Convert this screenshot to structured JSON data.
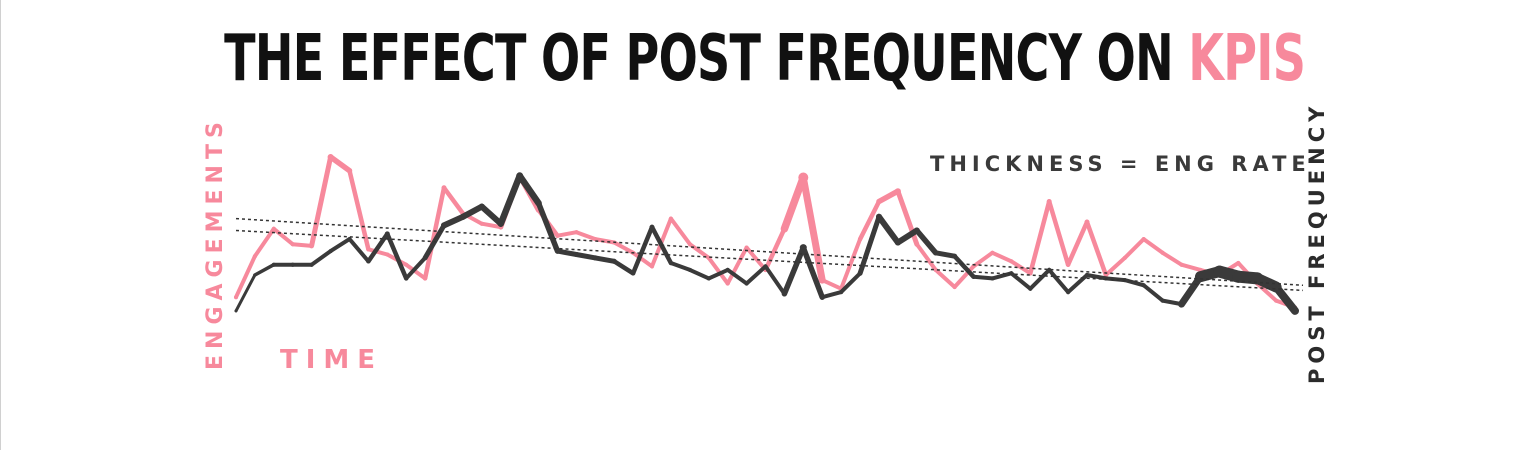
{
  "title": {
    "main": "THE EFFECT OF POST FREQUENCY ON ",
    "accent": "KPIS"
  },
  "colors": {
    "accent": "#f7899c",
    "dark": "#3a3a3a",
    "text": "#111111",
    "trend": "#333333"
  },
  "chart_data": {
    "type": "line",
    "title": "THE EFFECT OF POST FREQUENCY ON KPIS",
    "xlabel": "TIME",
    "annotation": "THICKNESS = ENG RATE",
    "axis_labels": {
      "left": "ENGAGEMENTS",
      "right": "POST FREQUENCY"
    },
    "grid": false,
    "ylim": [
      0,
      100
    ],
    "series": [
      {
        "name": "ENGAGEMENTS",
        "color": "#f7899c",
        "values": [
          18,
          42,
          58,
          49,
          48,
          100,
          92,
          46,
          43,
          37,
          29,
          82,
          67,
          61,
          59,
          89,
          69,
          54,
          56,
          52,
          50,
          44,
          36,
          64,
          49,
          41,
          26,
          47,
          34,
          58,
          88,
          28,
          23,
          52,
          74,
          80,
          49,
          34,
          24,
          36,
          44,
          39,
          32,
          74,
          37,
          62,
          31,
          41,
          52,
          44,
          37,
          34,
          31,
          38,
          26,
          16,
          12
        ],
        "thickness": [
          4,
          4,
          4,
          4,
          4,
          6,
          5,
          4,
          4,
          4,
          4,
          5,
          4,
          4,
          4,
          6,
          5,
          4,
          4,
          4,
          4,
          4,
          4,
          4,
          4,
          4,
          4,
          4,
          4,
          5,
          10,
          4,
          4,
          4,
          5,
          6,
          4,
          4,
          4,
          4,
          4,
          4,
          4,
          5,
          4,
          5,
          4,
          4,
          4,
          4,
          4,
          4,
          4,
          4,
          4,
          4,
          4
        ]
      },
      {
        "name": "POST FREQUENCY",
        "color": "#3a3a3a",
        "values": [
          10,
          31,
          37,
          37,
          37,
          45,
          52,
          39,
          55,
          29,
          41,
          60,
          65,
          71,
          61,
          89,
          73,
          45,
          43,
          41,
          39,
          32,
          59,
          38,
          34,
          29,
          34,
          26,
          36,
          20,
          47,
          18,
          21,
          32,
          65,
          50,
          57,
          44,
          42,
          30,
          29,
          32,
          23,
          34,
          21,
          31,
          29,
          28,
          25,
          16,
          14,
          30,
          33,
          30,
          29,
          24,
          10
        ],
        "thickness": [
          3,
          3,
          4,
          4,
          4,
          4,
          4,
          4,
          5,
          4,
          4,
          6,
          6,
          6,
          6,
          7,
          6,
          5,
          5,
          5,
          5,
          4,
          5,
          4,
          4,
          4,
          4,
          4,
          4,
          4,
          7,
          4,
          4,
          4,
          6,
          6,
          6,
          5,
          5,
          4,
          4,
          4,
          4,
          4,
          4,
          4,
          4,
          4,
          4,
          4,
          4,
          10,
          12,
          12,
          12,
          10,
          6
        ]
      }
    ],
    "trendlines": [
      {
        "series": "ENGAGEMENTS",
        "start": 64,
        "end": 25
      },
      {
        "series": "POST FREQUENCY",
        "start": 57,
        "end": 22
      }
    ]
  }
}
